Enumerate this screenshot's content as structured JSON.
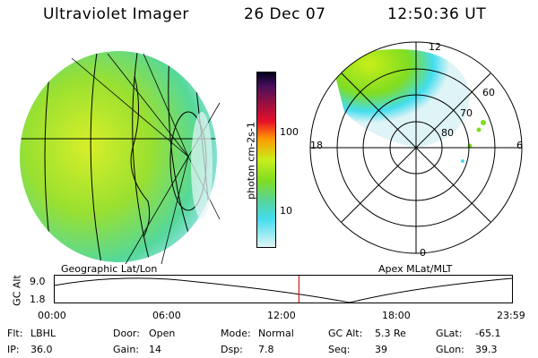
{
  "header": {
    "instrument": "Ultraviolet Imager",
    "date": "26 Dec 07",
    "time": "12:50:36 UT"
  },
  "panels": {
    "geographic_label": "Geographic Lat/Lon",
    "apex_label": "Apex MLat/MLT"
  },
  "polar": {
    "mlt_labels": {
      "top": "12",
      "left": "18",
      "right": "6",
      "bottom": "0"
    },
    "lat_labels": [
      "60",
      "70",
      "80"
    ]
  },
  "colorbar": {
    "unit_label": "photon cm-2s-1",
    "ticks": [
      "100",
      "10"
    ]
  },
  "altitude_plot": {
    "axis_label": "GC Alt",
    "y_ticks": [
      "9.0",
      "1.8"
    ],
    "x_ticks": [
      "00:00",
      "06:00",
      "12:00",
      "18:00",
      "23:59"
    ],
    "current_time_fraction": 0.535
  },
  "info": {
    "filter": {
      "label": "Flt:",
      "value": "LBHL"
    },
    "ip": {
      "label": "IP:",
      "value": "36.0"
    },
    "door": {
      "label": "Door:",
      "value": "Open"
    },
    "gain": {
      "label": "Gain:",
      "value": "14"
    },
    "mode": {
      "label": "Mode:",
      "value": "Normal"
    },
    "dsp": {
      "label": "Dsp:",
      "value": "7.8"
    },
    "gc_alt": {
      "label": "GC Alt:",
      "value": "5.3 Re"
    },
    "seq": {
      "label": "Seq:",
      "value": "39"
    },
    "glat": {
      "label": "GLat:",
      "value": "-65.1"
    },
    "glon": {
      "label": "GLon:",
      "value": "39.3"
    }
  },
  "colors": {
    "green": "#7fdd22",
    "yellow_green": "#c8ee1a",
    "cyan": "#44ddee",
    "orange": "#ff9900",
    "marker": "#cc2222"
  }
}
